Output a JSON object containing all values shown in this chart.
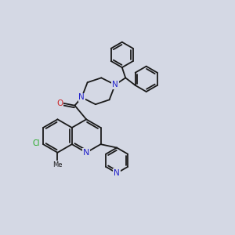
{
  "bg_color": "#d4d8e4",
  "bond_color": "#1a1a1a",
  "bond_width": 1.3,
  "atom_colors": {
    "N": "#2222cc",
    "O": "#cc2222",
    "Cl": "#22aa22",
    "C": "#1a1a1a"
  },
  "font_size": 7.5,
  "fig_size": [
    3.0,
    3.0
  ],
  "dpi": 100
}
